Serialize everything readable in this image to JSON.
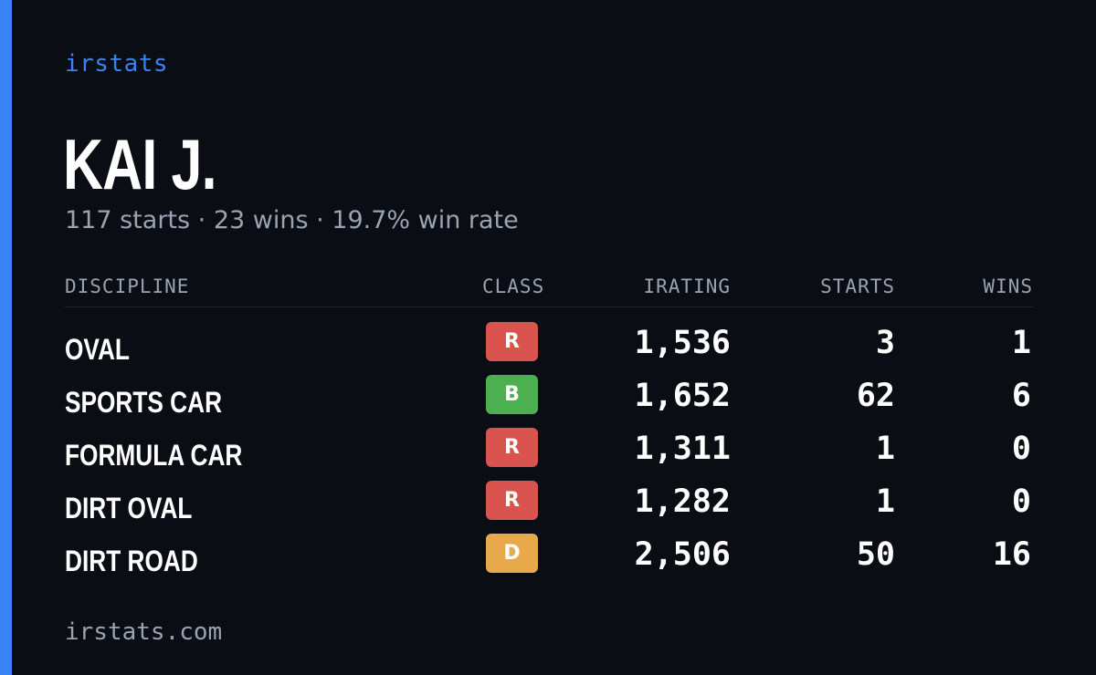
{
  "brand": "irstats",
  "driver": {
    "name": "KAI J.",
    "summary": "117 starts · 23 wins · 19.7% win rate"
  },
  "table": {
    "headers": {
      "discipline": "DISCIPLINE",
      "class": "CLASS",
      "irating": "IRATING",
      "starts": "STARTS",
      "wins": "WINS"
    },
    "rows": [
      {
        "discipline": "OVAL",
        "class": "R",
        "class_color": "#d9534f",
        "irating": "1,536",
        "starts": "3",
        "wins": "1"
      },
      {
        "discipline": "SPORTS CAR",
        "class": "B",
        "class_color": "#4cb050",
        "irating": "1,652",
        "starts": "62",
        "wins": "6"
      },
      {
        "discipline": "FORMULA CAR",
        "class": "R",
        "class_color": "#d9534f",
        "irating": "1,311",
        "starts": "1",
        "wins": "0"
      },
      {
        "discipline": "DIRT OVAL",
        "class": "R",
        "class_color": "#d9534f",
        "irating": "1,282",
        "starts": "1",
        "wins": "0"
      },
      {
        "discipline": "DIRT ROAD",
        "class": "D",
        "class_color": "#e8a94a",
        "irating": "2,506",
        "starts": "50",
        "wins": "16"
      }
    ]
  },
  "footer": "irstats.com",
  "colors": {
    "background": "#0a0d14",
    "accent": "#3b82f6",
    "muted_text": "#9aa3b2"
  }
}
